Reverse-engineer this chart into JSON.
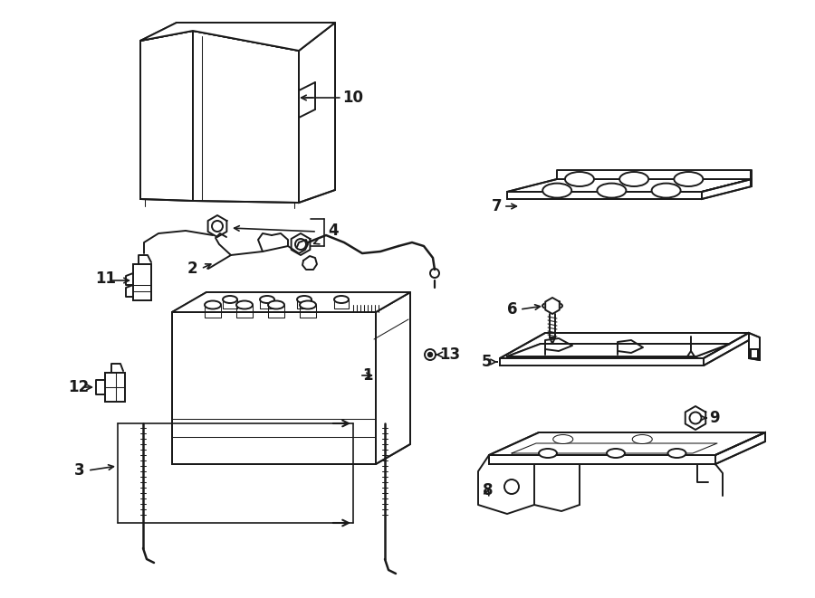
{
  "bg": "#ffffff",
  "lc": "#1a1a1a",
  "lw": 1.4,
  "tlw": 0.75,
  "fw": 9.0,
  "fh": 6.61,
  "dpi": 100,
  "fs": 12
}
